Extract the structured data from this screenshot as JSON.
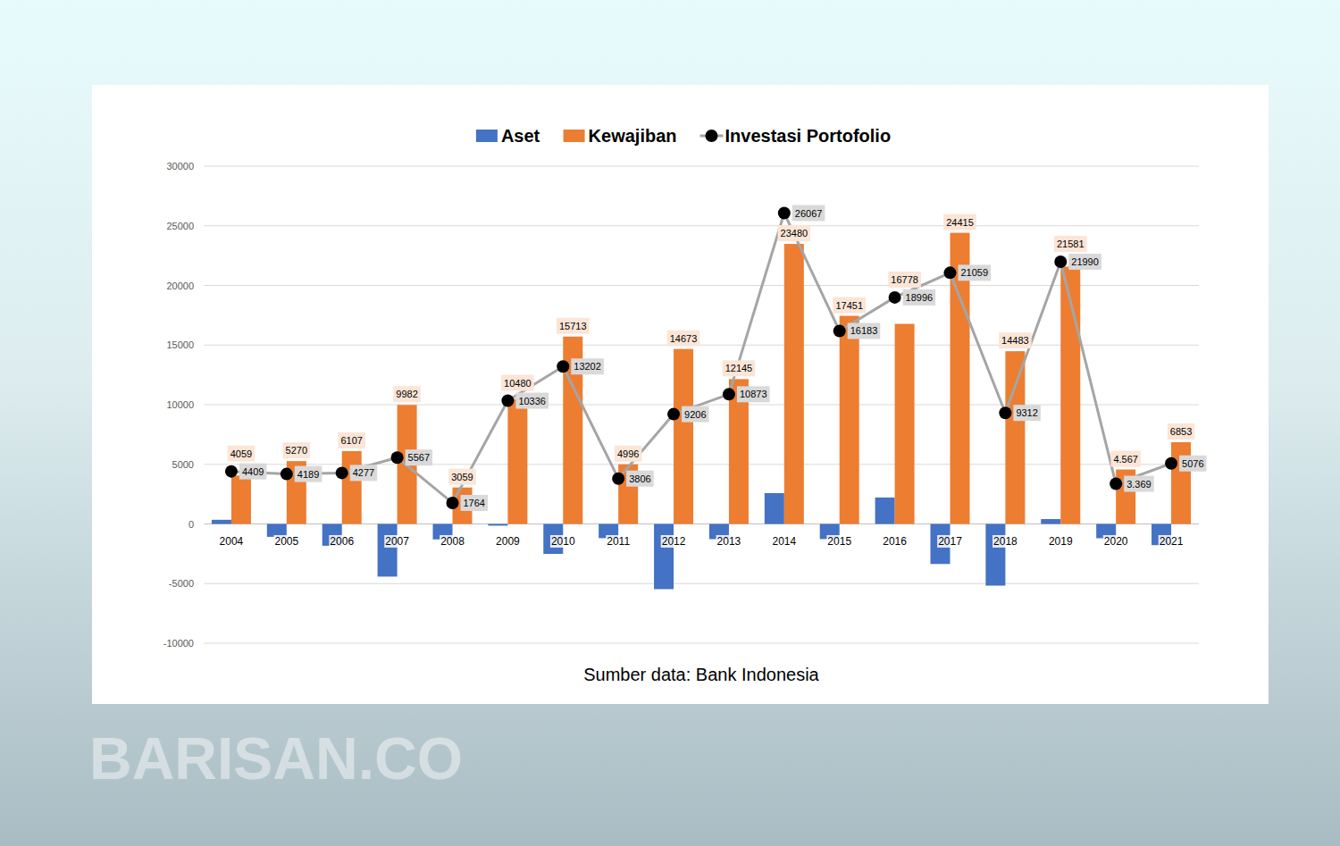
{
  "chart_data": {
    "type": "bar",
    "categories": [
      "2004",
      "2005",
      "2006",
      "2007",
      "2008",
      "2009",
      "2010",
      "2011",
      "2012",
      "2013",
      "2014",
      "2015",
      "2016",
      "2017",
      "2018",
      "2019",
      "2020",
      "2021"
    ],
    "series": [
      {
        "name": "Aset",
        "type": "bar",
        "color": "#4472c4",
        "data_labels": false,
        "values": [
          350,
          -1081,
          -1830,
          -4415,
          -1295,
          -144,
          -2511,
          -1190,
          -5467,
          -1272,
          2587,
          -1268,
          2218,
          -3356,
          -5171,
          409,
          -1198,
          -1777
        ]
      },
      {
        "name": "Kewajiban",
        "type": "bar",
        "color": "#ed7d31",
        "data_labels": true,
        "values": [
          4059,
          5270,
          6107,
          9982,
          3059,
          10480,
          15713,
          4996,
          14673,
          12145,
          23480,
          17451,
          16778,
          24415,
          14483,
          21581,
          4567,
          6853
        ],
        "value_labels": [
          "4059",
          "5270",
          "6107",
          "9982",
          "3059",
          "10480",
          "15713",
          "4996",
          "14673",
          "12145",
          "23480",
          "17451",
          "16778",
          "24415",
          "14483",
          "21581",
          "4.567",
          "6853"
        ]
      },
      {
        "name": "Investasi Portofolio",
        "type": "line",
        "color": "#a5a5a5",
        "marker": "circle",
        "line_style": "solid",
        "data_labels": true,
        "values": [
          4409,
          4189,
          4277,
          5567,
          1764,
          10336,
          13202,
          3806,
          9206,
          10873,
          26067,
          16183,
          18996,
          21059,
          9312,
          21990,
          3369,
          5076
        ],
        "value_labels": [
          "4409",
          "4189",
          "4277",
          "5567",
          "1764",
          "10336",
          "13202",
          "3806",
          "9206",
          "10873",
          "26067",
          "16183",
          "18996",
          "21059",
          "9312",
          "21990",
          "3.369",
          "5076"
        ]
      }
    ],
    "ylim": [
      -10000,
      30000
    ],
    "yticks": [
      -10000,
      -5000,
      0,
      5000,
      10000,
      15000,
      20000,
      25000,
      30000
    ],
    "grid": true,
    "legend": "top",
    "annotations": [
      "Sumber data: Bank Indonesia",
      "BARISAN.CO"
    ]
  }
}
